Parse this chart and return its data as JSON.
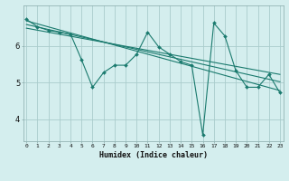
{
  "xlabel": "Humidex (Indice chaleur)",
  "bg_color": "#d4eeee",
  "grid_color": "#aacccc",
  "line_color": "#1a7a6e",
  "x_ticks": [
    0,
    1,
    2,
    3,
    4,
    5,
    6,
    7,
    8,
    9,
    10,
    11,
    12,
    13,
    14,
    15,
    16,
    17,
    18,
    19,
    20,
    21,
    22,
    23
  ],
  "y_ticks": [
    4,
    5,
    6
  ],
  "ylim": [
    3.4,
    7.1
  ],
  "xlim": [
    -0.3,
    23.3
  ],
  "series1": [
    6.72,
    6.52,
    6.42,
    6.37,
    6.32,
    5.62,
    4.87,
    5.27,
    5.47,
    5.47,
    5.77,
    6.37,
    5.97,
    5.77,
    5.57,
    5.47,
    3.57,
    6.62,
    6.27,
    5.32,
    4.87,
    4.87,
    5.22,
    4.72
  ],
  "trend1_x": [
    0,
    23
  ],
  "trend1_y": [
    6.68,
    4.78
  ],
  "trend2_x": [
    0,
    23
  ],
  "trend2_y": [
    6.58,
    5.02
  ],
  "trend3_x": [
    0,
    23
  ],
  "trend3_y": [
    6.48,
    5.22
  ]
}
